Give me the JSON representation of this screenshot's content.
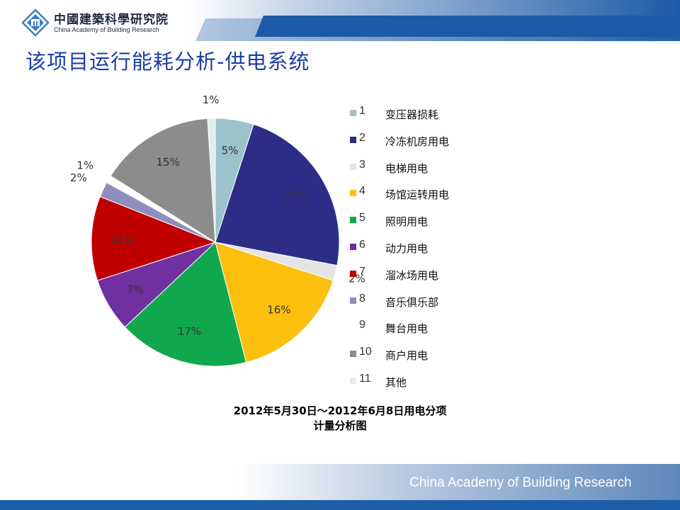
{
  "header": {
    "logo_cn": "中國建築科學研究院",
    "logo_en": "China Academy of Building Research"
  },
  "slide": {
    "title": "该项目运行能耗分析-供电系统",
    "caption_line1": "2012年5月30日～2012年6月8日用电分项",
    "caption_line2": "计量分析图"
  },
  "footer": {
    "text": "China Academy of Building Research"
  },
  "chart_data": {
    "type": "pie",
    "title": "",
    "slices": [
      {
        "id": "1",
        "label": "变压器损耗",
        "percent": 5,
        "value_label": "5%",
        "color": "#9cc3c9"
      },
      {
        "id": "2",
        "label": "冷冻机房用电",
        "percent": 23,
        "value_label": "23%",
        "color": "#2b2d87"
      },
      {
        "id": "3",
        "label": "电梯用电",
        "percent": 2,
        "value_label": "2%",
        "color": "#e4e4e4"
      },
      {
        "id": "4",
        "label": "场馆运转用电",
        "percent": 16,
        "value_label": "16%",
        "color": "#fdc00f"
      },
      {
        "id": "5",
        "label": "照明用电",
        "percent": 17,
        "value_label": "17%",
        "color": "#10a84c"
      },
      {
        "id": "6",
        "label": "动力用电",
        "percent": 7,
        "value_label": "7%",
        "color": "#7030a0"
      },
      {
        "id": "7",
        "label": "溜冰场用电",
        "percent": 11,
        "value_label": "11%",
        "color": "#c00000"
      },
      {
        "id": "8",
        "label": "音乐俱乐部",
        "percent": 2,
        "value_label": "2%",
        "color": "#8e8fbf"
      },
      {
        "id": "9",
        "label": "舞台用电",
        "percent": 1,
        "value_label": "1%",
        "color": "#ffffff"
      },
      {
        "id": "10",
        "label": "商户用电",
        "percent": 15,
        "value_label": "15%",
        "color": "#8c8c8c"
      },
      {
        "id": "11",
        "label": "其他",
        "percent": 1,
        "value_label": "1%",
        "color": "#ddeeed"
      }
    ],
    "legend_position": "right"
  }
}
